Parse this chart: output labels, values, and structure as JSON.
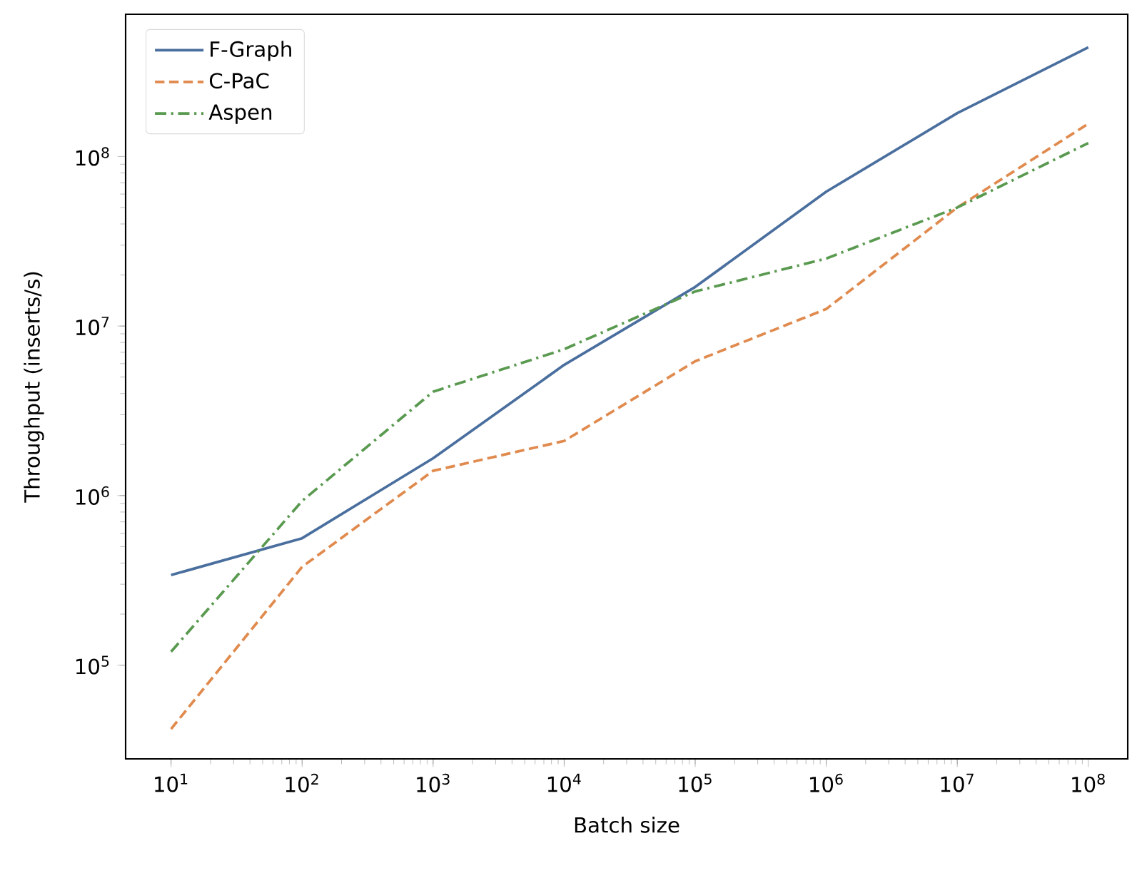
{
  "chart_data": {
    "type": "line",
    "xlabel": "Batch size",
    "ylabel": "Throughput (inserts/s)",
    "log": "xy",
    "legend": "top left",
    "grid": false,
    "x": [
      10,
      100,
      1000,
      10000,
      100000,
      1000000,
      10000000,
      100000000
    ],
    "xlim": [
      4.5,
      200000000
    ],
    "ylim": [
      28000,
      690000000
    ],
    "xticks": [
      {
        "value": 10,
        "label": "10$^{1}$"
      },
      {
        "value": 100,
        "label": "10$^{2}$"
      },
      {
        "value": 1000,
        "label": "10$^{3}$"
      },
      {
        "value": 10000,
        "label": "10$^{4}$"
      },
      {
        "value": 100000,
        "label": "10$^{5}$"
      },
      {
        "value": 1000000,
        "label": "10$^{6}$"
      },
      {
        "value": 10000000,
        "label": "10$^{7}$"
      },
      {
        "value": 100000000,
        "label": "10$^{8}$"
      }
    ],
    "yticks": [
      {
        "value": 100000,
        "label": "10$^{5}$"
      },
      {
        "value": 1000000,
        "label": "10$^{6}$"
      },
      {
        "value": 10000000,
        "label": "10$^{7}$"
      },
      {
        "value": 100000000,
        "label": "10$^{8}$"
      }
    ],
    "series": [
      {
        "name": "F-Graph",
        "color": "#4a6f9e",
        "line_style": "solid",
        "values": [
          340000,
          560000,
          1660000,
          5900000,
          17000000,
          62000000,
          180000000,
          440000000
        ]
      },
      {
        "name": "C-PaC",
        "color": "#e08a4e",
        "line_style": "dashed",
        "values": [
          42000,
          380000,
          1400000,
          2100000,
          6200000,
          12600000,
          50000000,
          156000000
        ]
      },
      {
        "name": "Aspen",
        "color": "#5a9a50",
        "line_style": "dashdot",
        "values": [
          120000,
          930000,
          4100000,
          7300000,
          16000000,
          25000000,
          50000000,
          120000000
        ]
      }
    ]
  }
}
